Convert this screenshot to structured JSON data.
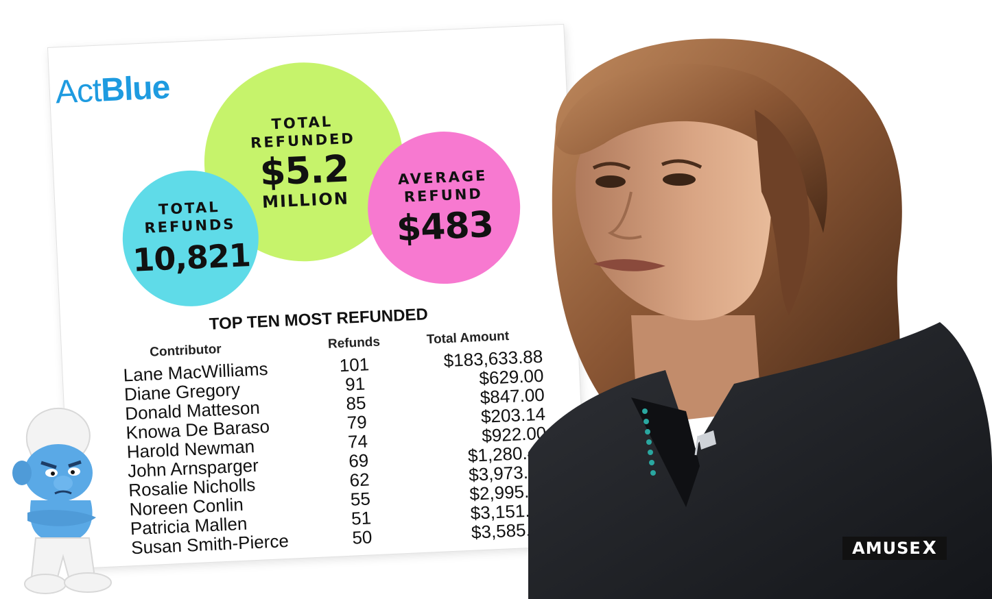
{
  "logo": {
    "text_light": "Act",
    "text_bold": "Blue",
    "color": "#1e9be0"
  },
  "stats": {
    "total_refunded": {
      "label_line1": "TOTAL",
      "label_line2": "REFUNDED",
      "value": "$5.2",
      "unit": "MILLION",
      "color": "#c6f36b"
    },
    "total_refunds": {
      "label_line1": "TOTAL",
      "label_line2": "REFUNDS",
      "value": "10,821",
      "color": "#5fdbe8"
    },
    "average_refund": {
      "label_line1": "AVERAGE",
      "label_line2": "REFUND",
      "value": "$483",
      "color": "#f779d0"
    }
  },
  "table": {
    "title": "TOP TEN MOST REFUNDED",
    "headers": {
      "contributor": "Contributor",
      "refunds": "Refunds",
      "total_amount": "Total Amount"
    },
    "rows": [
      {
        "contributor": "Lane MacWilliams",
        "refunds": "101",
        "total_amount": "$183,633.88"
      },
      {
        "contributor": "Diane Gregory",
        "refunds": "91",
        "total_amount": "$629.00"
      },
      {
        "contributor": "Donald Matteson",
        "refunds": "85",
        "total_amount": "$847.00"
      },
      {
        "contributor": "Knowa De Baraso",
        "refunds": "79",
        "total_amount": "$203.14"
      },
      {
        "contributor": "Harold Newman",
        "refunds": "74",
        "total_amount": "$922.00"
      },
      {
        "contributor": "John Arnsparger",
        "refunds": "69",
        "total_amount": "$1,280.42"
      },
      {
        "contributor": "Rosalie Nicholls",
        "refunds": "62",
        "total_amount": "$3,973.50"
      },
      {
        "contributor": "Noreen Conlin",
        "refunds": "55",
        "total_amount": "$2,995.00"
      },
      {
        "contributor": "Patricia Mallen",
        "refunds": "51",
        "total_amount": "$3,151.50"
      },
      {
        "contributor": "Susan Smith-Pierce",
        "refunds": "50",
        "total_amount": "$3,585.00"
      }
    ]
  },
  "watermark": {
    "brand": "AMUSE",
    "suffix": "X"
  },
  "icons": {
    "photo": "woman-portrait-photo",
    "mascot": "grumpy-smurf-icon"
  }
}
